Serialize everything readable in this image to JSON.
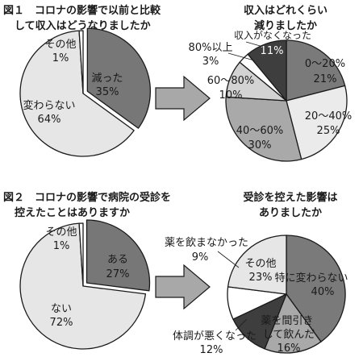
{
  "chart_data": [
    {
      "type": "pie",
      "title_lines": [
        "図１　コロナの影響で以前と比較",
        "して収入はどうなりましたか"
      ],
      "slices": [
        {
          "label": "減った",
          "value": 35,
          "value_text": "35%",
          "color": "#777777"
        },
        {
          "label": "変わらない",
          "value": 64,
          "value_text": "64%",
          "color": "#e6e6e6"
        },
        {
          "label": "その他",
          "value": 1,
          "value_text": "1%",
          "color": "#ffffff"
        }
      ]
    },
    {
      "type": "pie",
      "title_lines": [
        "収入はどれくらい",
        "減りましたか"
      ],
      "slices": [
        {
          "label": "0〜20%",
          "value": 21,
          "value_text": "21%",
          "color": "#7a7a7a"
        },
        {
          "label": "20〜40%",
          "value": 25,
          "value_text": "25%",
          "color": "#ebebeb"
        },
        {
          "label": "40〜60%",
          "value": 30,
          "value_text": "30%",
          "color": "#a9a9a9"
        },
        {
          "label": "60〜80%",
          "value": 10,
          "value_text": "10%",
          "color": "#d3d3d3"
        },
        {
          "label": "80%以上",
          "value": 3,
          "value_text": "3%",
          "color": "#ffffff"
        },
        {
          "label": "収入がなくなった",
          "value": 11,
          "value_text": "11%",
          "color": "#3e3e3e"
        }
      ]
    },
    {
      "type": "pie",
      "title_lines": [
        "図２　コロナの影響で病院の受診を",
        "控えたことはありますか"
      ],
      "slices": [
        {
          "label": "ある",
          "value": 27,
          "value_text": "27%",
          "color": "#777777"
        },
        {
          "label": "ない",
          "value": 72,
          "value_text": "72%",
          "color": "#e6e6e6"
        },
        {
          "label": "その他",
          "value": 1,
          "value_text": "1%",
          "color": "#ffffff"
        }
      ]
    },
    {
      "type": "pie",
      "title_lines": [
        "受診を控えた影響は",
        "ありましたか"
      ],
      "slices": [
        {
          "label": "特に変わらない",
          "value": 40,
          "value_text": "40%",
          "color": "#7a7a7a"
        },
        {
          "label": "薬を間引き して飲んだ",
          "value": 16,
          "value_text": "16%",
          "color": "#a9a9a9"
        },
        {
          "label": "体調が悪くなった",
          "value": 12,
          "value_text": "12%",
          "color": "#3e3e3e"
        },
        {
          "label": "薬を飲まなかった",
          "value": 9,
          "value_text": "9%",
          "color": "#ffffff"
        },
        {
          "label": "その他",
          "value": 23,
          "value_text": "23%",
          "color": "#e6e6e6"
        }
      ]
    }
  ]
}
